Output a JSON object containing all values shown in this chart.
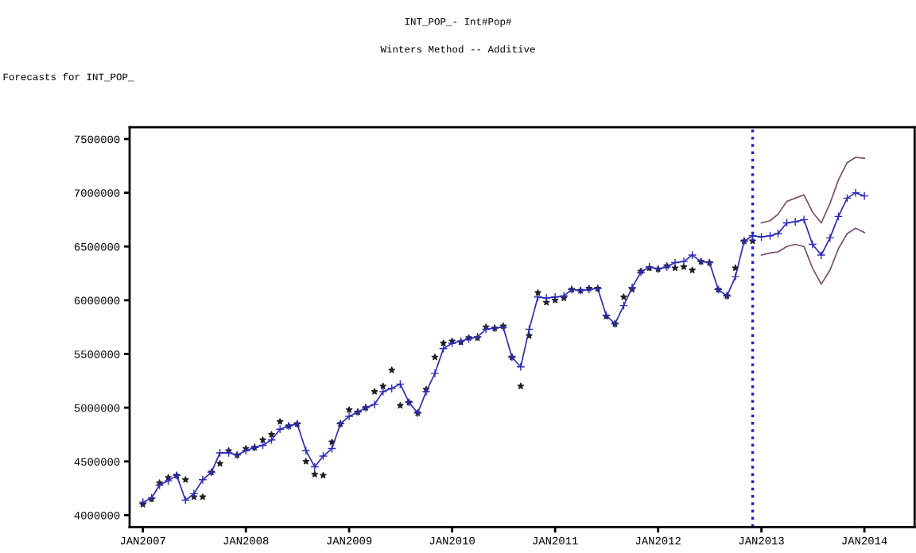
{
  "chart_data": {
    "type": "line",
    "title": "INT_POP_- Int#Pop#",
    "subtitle": "Winters Method -- Additive",
    "annotations": [
      "Forecasts for INT_POP_"
    ],
    "xlim": [
      "2006-11-15",
      "2014-06-28"
    ],
    "ylim": [
      3890000,
      7610000
    ],
    "xticks": [
      {
        "value": "2007-01-01",
        "label": "JAN2007"
      },
      {
        "value": "2008-01-01",
        "label": "JAN2008"
      },
      {
        "value": "2009-01-01",
        "label": "JAN2009"
      },
      {
        "value": "2010-01-01",
        "label": "JAN2010"
      },
      {
        "value": "2011-01-01",
        "label": "JAN2011"
      },
      {
        "value": "2012-01-01",
        "label": "JAN2012"
      },
      {
        "value": "2013-01-01",
        "label": "JAN2013"
      },
      {
        "value": "2014-01-01",
        "label": "JAN2014"
      }
    ],
    "yticks": [
      4000000,
      4500000,
      5000000,
      5500000,
      6000000,
      6500000,
      7000000,
      7500000
    ],
    "grid": false,
    "legend": false,
    "ref_lines": [
      {
        "axis": "x",
        "value": "2012-12-01",
        "color": "#2020c0",
        "line_style": "dotted"
      }
    ],
    "series": [
      {
        "color": "#7a4a6a",
        "marker": "none",
        "x": [
          "2013-01",
          "2013-02",
          "2013-03",
          "2013-04",
          "2013-05",
          "2013-06",
          "2013-07",
          "2013-08",
          "2013-09",
          "2013-10",
          "2013-11",
          "2013-12",
          "2014-01"
        ],
        "values": [
          6720000,
          6740000,
          6800000,
          6920000,
          6950000,
          6980000,
          6820000,
          6720000,
          6900000,
          7120000,
          7280000,
          7330000,
          7320000
        ]
      },
      {
        "color": "#7a4a6a",
        "marker": "none",
        "x": [
          "2013-01",
          "2013-02",
          "2013-03",
          "2013-04",
          "2013-05",
          "2013-06",
          "2013-07",
          "2013-08",
          "2013-09",
          "2013-10",
          "2013-11",
          "2013-12",
          "2014-01"
        ],
        "values": [
          6420000,
          6440000,
          6450000,
          6500000,
          6520000,
          6500000,
          6300000,
          6150000,
          6280000,
          6480000,
          6620000,
          6670000,
          6630000
        ]
      },
      {
        "color": "#2a2ab8",
        "marker": "cross",
        "x": [
          "2007-01",
          "2007-02",
          "2007-03",
          "2007-04",
          "2007-05",
          "2007-06",
          "2007-07",
          "2007-08",
          "2007-09",
          "2007-10",
          "2007-11",
          "2007-12",
          "2008-01",
          "2008-02",
          "2008-03",
          "2008-04",
          "2008-05",
          "2008-06",
          "2008-07",
          "2008-08",
          "2008-09",
          "2008-10",
          "2008-11",
          "2008-12",
          "2009-01",
          "2009-02",
          "2009-03",
          "2009-04",
          "2009-05",
          "2009-06",
          "2009-07",
          "2009-08",
          "2009-09",
          "2009-10",
          "2009-11",
          "2009-12",
          "2010-01",
          "2010-02",
          "2010-03",
          "2010-04",
          "2010-05",
          "2010-06",
          "2010-07",
          "2010-08",
          "2010-09",
          "2010-10",
          "2010-11",
          "2010-12",
          "2011-01",
          "2011-02",
          "2011-03",
          "2011-04",
          "2011-05",
          "2011-06",
          "2011-07",
          "2011-08",
          "2011-09",
          "2011-10",
          "2011-11",
          "2011-12",
          "2012-01",
          "2012-02",
          "2012-03",
          "2012-04",
          "2012-05",
          "2012-06",
          "2012-07",
          "2012-08",
          "2012-09",
          "2012-10",
          "2012-11",
          "2012-12",
          "2013-01",
          "2013-02",
          "2013-03",
          "2013-04",
          "2013-05",
          "2013-06",
          "2013-07",
          "2013-08",
          "2013-09",
          "2013-10",
          "2013-11",
          "2013-12",
          "2014-01"
        ],
        "values": [
          4120000,
          4160000,
          4280000,
          4320000,
          4370000,
          4140000,
          4200000,
          4330000,
          4400000,
          4580000,
          4580000,
          4560000,
          4600000,
          4630000,
          4650000,
          4700000,
          4800000,
          4830000,
          4850000,
          4600000,
          4450000,
          4550000,
          4620000,
          4850000,
          4920000,
          4960000,
          5000000,
          5030000,
          5150000,
          5180000,
          5220000,
          5050000,
          4950000,
          5150000,
          5320000,
          5550000,
          5600000,
          5620000,
          5640000,
          5660000,
          5730000,
          5740000,
          5750000,
          5470000,
          5380000,
          5730000,
          6030000,
          6020000,
          6030000,
          6040000,
          6100000,
          6090000,
          6100000,
          6110000,
          5860000,
          5780000,
          5950000,
          6120000,
          6260000,
          6310000,
          6290000,
          6310000,
          6350000,
          6360000,
          6420000,
          6360000,
          6350000,
          6100000,
          6040000,
          6220000,
          6550000,
          6600000,
          6590000,
          6600000,
          6620000,
          6720000,
          6730000,
          6750000,
          6520000,
          6420000,
          6580000,
          6780000,
          6950000,
          7000000,
          6970000
        ]
      },
      {
        "type": "scatter",
        "color": "#202020",
        "marker": "star",
        "x": [
          "2007-01",
          "2007-02",
          "2007-03",
          "2007-04",
          "2007-05",
          "2007-06",
          "2007-07",
          "2007-08",
          "2007-09",
          "2007-10",
          "2007-11",
          "2007-12",
          "2008-01",
          "2008-02",
          "2008-03",
          "2008-04",
          "2008-05",
          "2008-06",
          "2008-07",
          "2008-08",
          "2008-09",
          "2008-10",
          "2008-11",
          "2008-12",
          "2009-01",
          "2009-02",
          "2009-03",
          "2009-04",
          "2009-05",
          "2009-06",
          "2009-07",
          "2009-08",
          "2009-09",
          "2009-10",
          "2009-11",
          "2009-12",
          "2010-01",
          "2010-02",
          "2010-03",
          "2010-04",
          "2010-05",
          "2010-06",
          "2010-07",
          "2010-08",
          "2010-09",
          "2010-10",
          "2010-11",
          "2010-12",
          "2011-01",
          "2011-02",
          "2011-03",
          "2011-04",
          "2011-05",
          "2011-06",
          "2011-07",
          "2011-08",
          "2011-09",
          "2011-10",
          "2011-11",
          "2011-12",
          "2012-01",
          "2012-02",
          "2012-03",
          "2012-04",
          "2012-05",
          "2012-06",
          "2012-07",
          "2012-08",
          "2012-09",
          "2012-10",
          "2012-11",
          "2012-12"
        ],
        "values": [
          4100000,
          4150000,
          4300000,
          4350000,
          4370000,
          4330000,
          4170000,
          4170000,
          4400000,
          4480000,
          4600000,
          4560000,
          4620000,
          4630000,
          4700000,
          4750000,
          4870000,
          4830000,
          4850000,
          4500000,
          4380000,
          4370000,
          4680000,
          4850000,
          4980000,
          4960000,
          5000000,
          5150000,
          5200000,
          5350000,
          5020000,
          5050000,
          4950000,
          5170000,
          5470000,
          5600000,
          5620000,
          5610000,
          5650000,
          5650000,
          5750000,
          5740000,
          5760000,
          5470000,
          5200000,
          5670000,
          6070000,
          5980000,
          6000000,
          6020000,
          6100000,
          6090000,
          6110000,
          6110000,
          5850000,
          5780000,
          6030000,
          6100000,
          6270000,
          6300000,
          6290000,
          6320000,
          6300000,
          6310000,
          6280000,
          6360000,
          6350000,
          6100000,
          6040000,
          6300000,
          6550000,
          6550000
        ]
      }
    ]
  }
}
